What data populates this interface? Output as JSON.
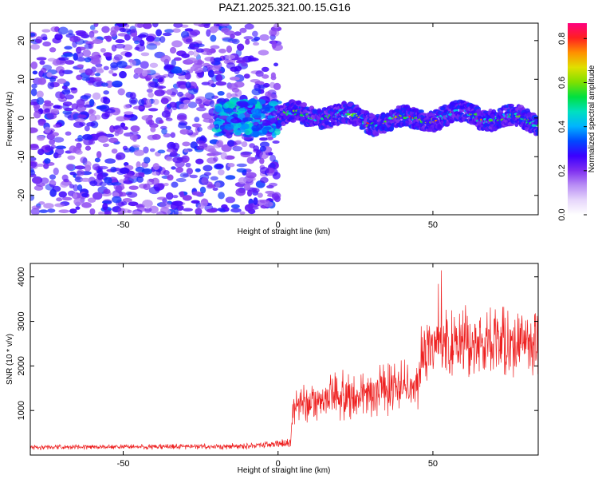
{
  "title": "PAZ1.2025.321.00.15.G16",
  "chart_data": [
    {
      "type": "heatmap",
      "name": "spectrogram",
      "xlabel": "Height of straight line (km)",
      "ylabel": "Frequency (Hz)",
      "xlim": [
        -80,
        84
      ],
      "ylim": [
        -25,
        24.5
      ],
      "x_ticks": [
        -50,
        0,
        50
      ],
      "y_ticks": [
        -20,
        -10,
        0,
        10,
        20
      ],
      "colorbar": {
        "label": "Normalized spectral amplitude",
        "range": [
          0,
          0.87
        ],
        "ticks": [
          0.0,
          0.2,
          0.4,
          0.6,
          0.8
        ],
        "colormap": [
          "#ffffff",
          "#e6d6fb",
          "#b98ef5",
          "#7f2ff0",
          "#3b00ff",
          "#0049ff",
          "#00b4ff",
          "#00e0c0",
          "#00e040",
          "#80e000",
          "#e0e000",
          "#ff9000",
          "#ff2020",
          "#ff0080"
        ]
      },
      "features": {
        "noise_region_x": [
          -80,
          0
        ],
        "signal_onset_x": -20,
        "signal_band_freq": 0
      }
    },
    {
      "type": "line",
      "name": "snr",
      "xlabel": "Height of straight line (km)",
      "ylabel": "SNR (10 * v/v)",
      "xlim": [
        -80,
        84
      ],
      "ylim": [
        0,
        4300
      ],
      "x_ticks": [
        -50,
        0,
        50
      ],
      "y_ticks": [
        1000,
        2000,
        3000,
        4000
      ],
      "color": "#ee2020",
      "series_profile": [
        {
          "x": -80,
          "mean": 170,
          "spread": 60
        },
        {
          "x": -10,
          "mean": 200,
          "spread": 80
        },
        {
          "x": 4,
          "mean": 280,
          "spread": 120
        },
        {
          "x": 5,
          "mean": 1150,
          "spread": 550
        },
        {
          "x": 45,
          "mean": 1600,
          "spread": 700
        },
        {
          "x": 47,
          "mean": 2500,
          "spread": 900
        },
        {
          "x": 84,
          "mean": 2500,
          "spread": 900
        }
      ]
    }
  ]
}
